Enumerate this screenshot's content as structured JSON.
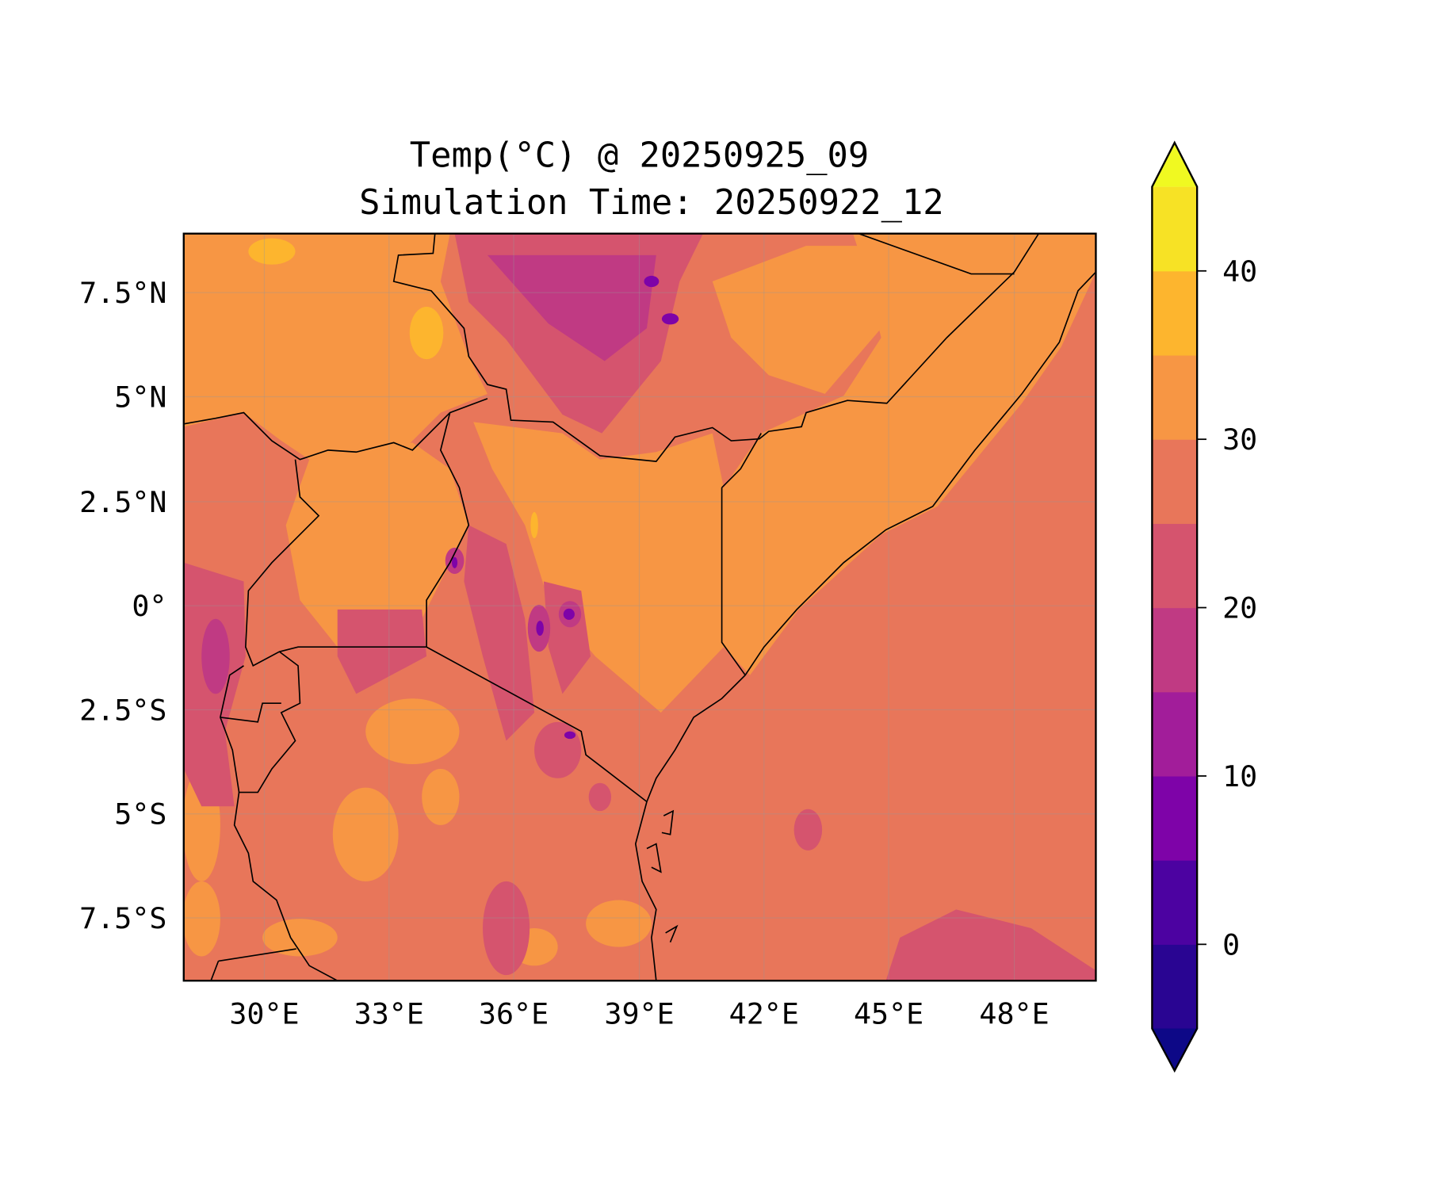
{
  "chart_data": {
    "type": "heatmap",
    "title": "Temp(°C) @ 20250925_09",
    "subtitle": "Simulation Time: 20250922_12",
    "xlabel": "",
    "ylabel": "",
    "xlim": [
      28.06,
      49.95
    ],
    "ylim": [
      -9.0,
      8.9
    ],
    "x_ticks": [
      30,
      33,
      36,
      39,
      42,
      45,
      48
    ],
    "x_tick_labels": [
      "30°E",
      "33°E",
      "36°E",
      "39°E",
      "42°E",
      "45°E",
      "48°E"
    ],
    "y_ticks": [
      7.5,
      5,
      2.5,
      0,
      -2.5,
      -5,
      -7.5
    ],
    "y_tick_labels": [
      "7.5°N",
      "5°N",
      "2.5°N",
      "0°",
      "2.5°S",
      "5°S",
      "7.5°S"
    ],
    "grid": true,
    "colorbar": {
      "levels": [
        -5,
        0,
        5,
        10,
        15,
        20,
        25,
        30,
        35,
        40,
        45
      ],
      "colors": [
        "#290592",
        "#4c02a1",
        "#7e03a8",
        "#a21d9a",
        "#c03a83",
        "#d5546e",
        "#e8765a",
        "#f79644",
        "#fdb52e",
        "#f7e225"
      ],
      "under_color": "#0d0887",
      "over_color": "#f0f921",
      "extend": "both",
      "ticks": [
        0,
        10,
        20,
        30,
        40
      ],
      "tick_labels": [
        "0",
        "10",
        "20",
        "30",
        "40"
      ],
      "placement": "right"
    }
  }
}
